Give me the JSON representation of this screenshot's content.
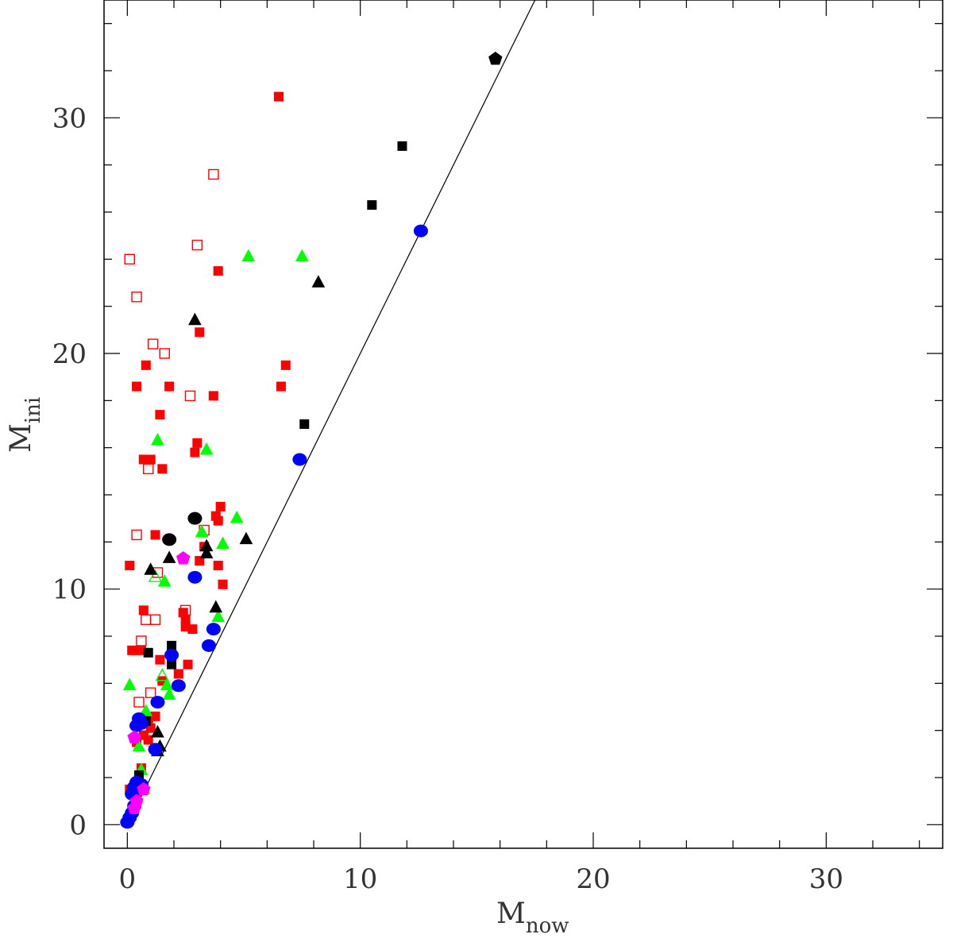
{
  "chart_data": {
    "type": "scatter",
    "title": "",
    "xlabel": {
      "main": "M",
      "sub": "now"
    },
    "ylabel": {
      "main": "M",
      "sub": "ini"
    },
    "xlim": [
      -1,
      35
    ],
    "ylim": [
      -1,
      35
    ],
    "xticks": [
      0,
      10,
      20,
      30
    ],
    "yticks": [
      0,
      10,
      20,
      30
    ],
    "xtick_labels": [
      "0",
      "10",
      "20",
      "30"
    ],
    "ytick_labels": [
      "0",
      "10",
      "20",
      "30"
    ],
    "minor_tick_step": 2,
    "grid": false,
    "legend": "none",
    "reference_line": {
      "slope": 2,
      "intercept": 0
    },
    "colors": {
      "red": "#ff0000",
      "green": "#00ff00",
      "black": "#000000",
      "blue": "#0000ff",
      "magenta": "#ff00ff",
      "axis": "#000000"
    },
    "series": [
      {
        "color": "red",
        "marker": "square",
        "filled": true,
        "points": [
          [
            6.5,
            30.9
          ],
          [
            3.9,
            23.5
          ],
          [
            3.1,
            20.9
          ],
          [
            0.8,
            19.5
          ],
          [
            6.8,
            19.5
          ],
          [
            0.4,
            18.6
          ],
          [
            1.8,
            18.6
          ],
          [
            6.6,
            18.6
          ],
          [
            3.7,
            18.2
          ],
          [
            1.4,
            17.4
          ],
          [
            3.0,
            16.2
          ],
          [
            2.9,
            15.8
          ],
          [
            0.7,
            15.5
          ],
          [
            1.0,
            15.5
          ],
          [
            1.5,
            15.1
          ],
          [
            4.0,
            13.5
          ],
          [
            3.8,
            13.1
          ],
          [
            3.9,
            12.9
          ],
          [
            1.2,
            12.3
          ],
          [
            3.3,
            11.8
          ],
          [
            3.1,
            11.2
          ],
          [
            0.1,
            11.0
          ],
          [
            3.9,
            11.0
          ],
          [
            4.1,
            10.2
          ],
          [
            0.7,
            9.1
          ],
          [
            2.4,
            9.0
          ],
          [
            2.5,
            8.7
          ],
          [
            2.5,
            8.4
          ],
          [
            2.8,
            8.3
          ],
          [
            0.2,
            7.4
          ],
          [
            0.6,
            7.4
          ],
          [
            1.4,
            7.0
          ],
          [
            2.6,
            6.8
          ],
          [
            2.2,
            6.4
          ],
          [
            1.5,
            6.1
          ],
          [
            1.2,
            4.6
          ],
          [
            0.9,
            4.4
          ],
          [
            1.0,
            4.1
          ],
          [
            0.7,
            3.8
          ],
          [
            0.9,
            3.6
          ],
          [
            0.4,
            3.5
          ],
          [
            0.6,
            2.4
          ],
          [
            0.5,
            2.0
          ],
          [
            0.1,
            1.5
          ],
          [
            0.4,
            1.3
          ]
        ]
      },
      {
        "color": "red",
        "marker": "square",
        "filled": false,
        "points": [
          [
            3.7,
            27.6
          ],
          [
            3.0,
            24.6
          ],
          [
            0.1,
            24.0
          ],
          [
            0.4,
            22.4
          ],
          [
            1.1,
            20.4
          ],
          [
            1.6,
            20.0
          ],
          [
            2.7,
            18.2
          ],
          [
            0.9,
            15.1
          ],
          [
            0.4,
            12.3
          ],
          [
            3.3,
            12.5
          ],
          [
            1.3,
            10.7
          ],
          [
            0.8,
            8.7
          ],
          [
            1.2,
            8.7
          ],
          [
            2.5,
            9.1
          ],
          [
            0.6,
            7.8
          ],
          [
            1.0,
            5.6
          ],
          [
            0.5,
            5.2
          ]
        ]
      },
      {
        "color": "green",
        "marker": "triangle",
        "filled": true,
        "points": [
          [
            5.2,
            24.1
          ],
          [
            7.5,
            24.1
          ],
          [
            1.3,
            16.3
          ],
          [
            3.4,
            15.9
          ],
          [
            4.7,
            13.0
          ],
          [
            3.2,
            12.4
          ],
          [
            4.1,
            11.9
          ],
          [
            1.6,
            10.3
          ],
          [
            3.9,
            8.8
          ],
          [
            0.1,
            5.9
          ],
          [
            1.7,
            5.9
          ],
          [
            1.8,
            5.5
          ],
          [
            0.8,
            4.8
          ],
          [
            0.5,
            3.3
          ],
          [
            1.3,
            3.1
          ],
          [
            0.6,
            2.3
          ]
        ]
      },
      {
        "color": "green",
        "marker": "triangle",
        "filled": false,
        "points": [
          [
            1.2,
            10.5
          ],
          [
            1.5,
            6.3
          ],
          [
            0.7,
            1.5
          ]
        ]
      },
      {
        "color": "black",
        "marker": "square",
        "filled": true,
        "points": [
          [
            11.8,
            28.8
          ],
          [
            10.5,
            26.3
          ],
          [
            7.6,
            17.0
          ],
          [
            1.9,
            7.6
          ],
          [
            1.9,
            6.8
          ],
          [
            0.9,
            7.3
          ],
          [
            0.8,
            4.4
          ],
          [
            0.5,
            2.1
          ]
        ]
      },
      {
        "color": "black",
        "marker": "triangle",
        "filled": true,
        "points": [
          [
            8.2,
            23.0
          ],
          [
            2.9,
            21.4
          ],
          [
            1.8,
            11.3
          ],
          [
            3.4,
            11.8
          ],
          [
            3.4,
            11.5
          ],
          [
            5.1,
            12.1
          ],
          [
            1.0,
            10.8
          ],
          [
            3.8,
            9.2
          ],
          [
            1.3,
            3.9
          ],
          [
            1.4,
            3.3
          ],
          [
            1.3,
            3.1
          ]
        ]
      },
      {
        "color": "black",
        "marker": "circle",
        "filled": true,
        "points": [
          [
            2.9,
            13.0
          ],
          [
            1.8,
            12.1
          ]
        ]
      },
      {
        "color": "black",
        "marker": "pentagon",
        "filled": true,
        "points": [
          [
            15.8,
            32.5
          ]
        ]
      },
      {
        "color": "blue",
        "marker": "circle",
        "filled": true,
        "points": [
          [
            12.6,
            25.2
          ],
          [
            7.4,
            15.5
          ],
          [
            2.9,
            10.5
          ],
          [
            3.7,
            8.3
          ],
          [
            3.5,
            7.6
          ],
          [
            1.9,
            7.2
          ],
          [
            2.2,
            5.9
          ],
          [
            1.3,
            5.2
          ],
          [
            0.5,
            4.5
          ],
          [
            0.6,
            4.3
          ],
          [
            0.4,
            4.2
          ],
          [
            1.2,
            3.2
          ],
          [
            0.4,
            1.8
          ],
          [
            0.6,
            1.7
          ],
          [
            0.3,
            1.6
          ],
          [
            0.2,
            1.3
          ],
          [
            0.3,
            0.8
          ],
          [
            0.2,
            0.5
          ],
          [
            0.1,
            0.3
          ],
          [
            0.0,
            0.1
          ]
        ]
      },
      {
        "color": "magenta",
        "marker": "pentagon",
        "filled": true,
        "points": [
          [
            2.4,
            11.3
          ],
          [
            0.3,
            3.7
          ],
          [
            0.7,
            1.5
          ],
          [
            0.4,
            1.0
          ],
          [
            0.3,
            0.7
          ]
        ]
      }
    ]
  }
}
